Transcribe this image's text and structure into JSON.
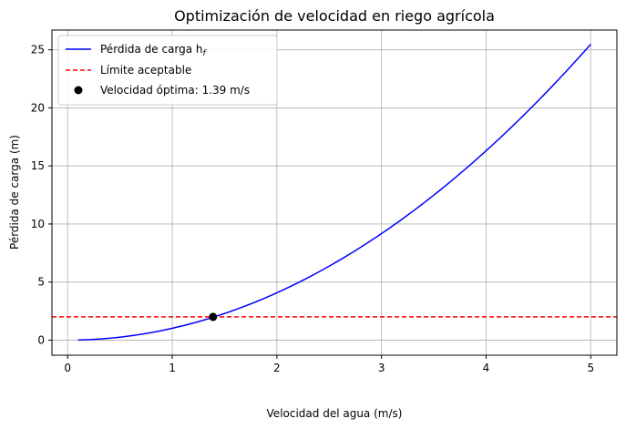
{
  "chart_data": {
    "type": "line",
    "title": "Optimización de velocidad en riego agrícola",
    "xlabel": "Velocidad del agua (m/s)",
    "ylabel": "Pérdida de carga (m)",
    "xlim": [
      -0.15,
      5.25
    ],
    "ylim": [
      -1.3,
      26.7
    ],
    "x_ticks": [
      0,
      1,
      2,
      3,
      4,
      5
    ],
    "x_tick_labels": [
      "0",
      "1",
      "2",
      "3",
      "4",
      "5"
    ],
    "y_ticks": [
      0,
      5,
      10,
      15,
      20,
      25
    ],
    "y_tick_labels": [
      "0",
      "5",
      "10",
      "15",
      "20",
      "25"
    ],
    "grid": true,
    "legend_position": "top-left",
    "series": [
      {
        "name": "Pérdida de carga h",
        "name_subscript": "f",
        "kind": "line",
        "color": "#0000ff",
        "x": [
          0.1,
          0.25,
          0.5,
          0.75,
          1.0,
          1.25,
          1.5,
          1.75,
          2.0,
          2.25,
          2.5,
          2.75,
          3.0,
          3.25,
          3.5,
          3.75,
          4.0,
          4.25,
          4.5,
          4.75,
          5.0
        ],
        "y": [
          0.01,
          0.06,
          0.26,
          0.58,
          1.02,
          1.59,
          2.29,
          3.12,
          4.08,
          5.16,
          6.37,
          7.71,
          9.17,
          10.77,
          12.49,
          14.33,
          16.31,
          18.41,
          20.64,
          22.99,
          25.48
        ]
      },
      {
        "name": "Límite aceptable",
        "kind": "hline",
        "color": "#ff0000",
        "y": 2.0
      },
      {
        "name": "Velocidad óptima: 1.39 m/s",
        "kind": "point",
        "color": "#000000",
        "x": 1.39,
        "y": 2.0
      }
    ]
  }
}
